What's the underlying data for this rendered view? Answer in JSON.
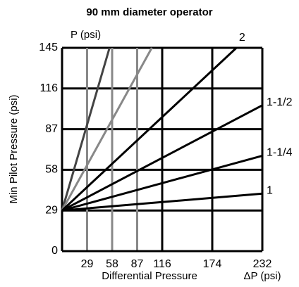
{
  "chart_data": {
    "type": "line",
    "title": "90 mm diameter operator",
    "y_label": "Min Pilot Pressure (psi)",
    "top_label": "P (psi)",
    "x_label": "Differential Pressure",
    "x_unit_label": "ΔP (psi)",
    "xlim": [
      0,
      232
    ],
    "ylim": [
      0,
      145
    ],
    "xticks": [
      29,
      58,
      87,
      116,
      174,
      232
    ],
    "yticks": [
      0,
      29,
      58,
      87,
      116,
      145
    ],
    "grid": true,
    "series": [
      {
        "color": "#444444",
        "x": [
          0,
          55
        ],
        "values": [
          29,
          145
        ]
      },
      {
        "color": "#888888",
        "x": [
          0,
          104
        ],
        "values": [
          29,
          145
        ]
      },
      {
        "name": "2",
        "color": "#000000",
        "x": [
          0,
          202
        ],
        "values": [
          29,
          145
        ]
      },
      {
        "name": "1-1/2",
        "color": "#000000",
        "x": [
          0,
          232
        ],
        "values": [
          29,
          104
        ]
      },
      {
        "name": "1-1/4",
        "color": "#000000",
        "x": [
          0,
          232
        ],
        "values": [
          29,
          68
        ]
      },
      {
        "name": "1",
        "color": "#000000",
        "x": [
          0,
          232
        ],
        "values": [
          29,
          41
        ]
      }
    ]
  }
}
